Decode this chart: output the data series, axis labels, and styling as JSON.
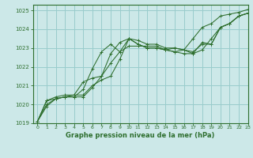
{
  "xlabel": "Graphe pression niveau de la mer (hPa)",
  "bg_color": "#cce8e8",
  "grid_color": "#99cccc",
  "line_color": "#2d6e2d",
  "xlim": [
    -0.5,
    23
  ],
  "ylim": [
    1019,
    1025.3
  ],
  "yticks": [
    1019,
    1020,
    1021,
    1022,
    1023,
    1024,
    1025
  ],
  "xticks": [
    0,
    1,
    2,
    3,
    4,
    5,
    6,
    7,
    8,
    9,
    10,
    11,
    12,
    13,
    14,
    15,
    16,
    17,
    18,
    19,
    20,
    21,
    22,
    23
  ],
  "series": [
    [
      1019.1,
      1019.9,
      1020.3,
      1020.4,
      1020.5,
      1020.5,
      1021.0,
      1021.3,
      1021.5,
      1022.4,
      1023.5,
      1023.4,
      1023.2,
      1023.2,
      1023.0,
      1023.0,
      1022.9,
      1022.7,
      1022.9,
      1023.5,
      1024.1,
      1024.3,
      1024.7,
      1024.85
    ],
    [
      1019.1,
      1020.2,
      1020.4,
      1020.5,
      1020.5,
      1021.2,
      1021.4,
      1021.5,
      1022.2,
      1022.8,
      1023.5,
      1023.2,
      1023.0,
      1023.0,
      1022.9,
      1022.8,
      1022.9,
      1023.5,
      1024.1,
      1024.3,
      1024.7,
      1024.8,
      1024.9,
      1025.05
    ],
    [
      1019.1,
      1020.2,
      1020.3,
      1020.4,
      1020.4,
      1020.8,
      1021.9,
      1022.8,
      1023.2,
      1022.8,
      1023.1,
      1023.1,
      1023.1,
      1023.1,
      1022.9,
      1022.8,
      1022.7,
      1022.7,
      1023.3,
      1023.2,
      1024.1,
      1024.3,
      1024.7,
      1024.85
    ],
    [
      1019.1,
      1020.0,
      1020.3,
      1020.4,
      1020.4,
      1020.4,
      1020.9,
      1021.5,
      1022.7,
      1023.3,
      1023.5,
      1023.2,
      1023.0,
      1023.0,
      1022.9,
      1023.0,
      1022.9,
      1022.8,
      1023.2,
      1023.2,
      1024.1,
      1024.3,
      1024.7,
      1024.85
    ]
  ]
}
